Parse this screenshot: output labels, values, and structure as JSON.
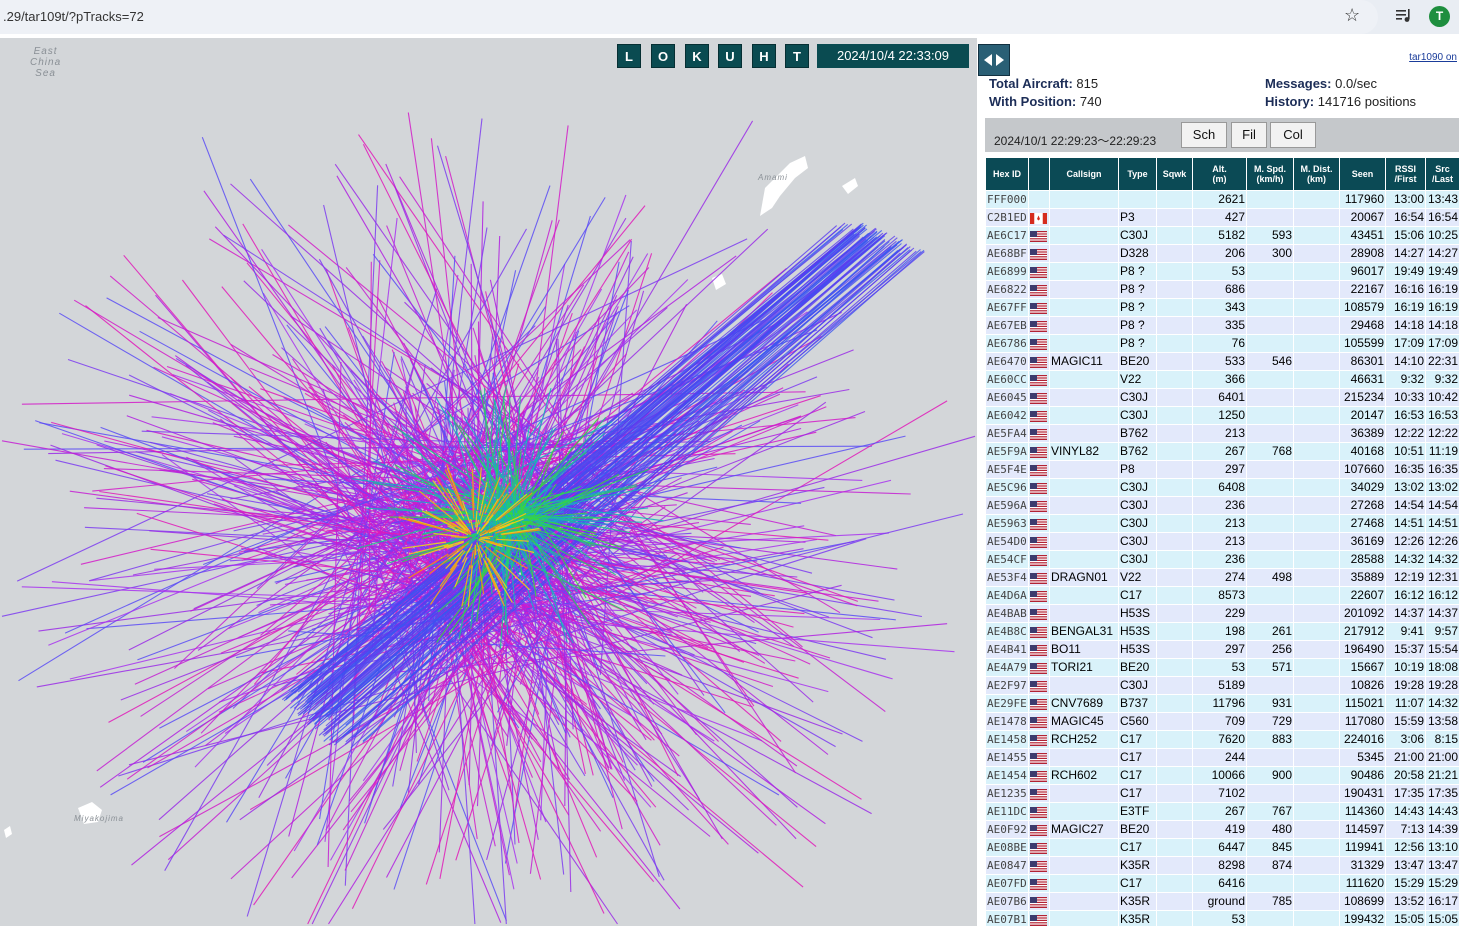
{
  "browser": {
    "url": ".29/tar109t/?pTracks=72",
    "avatar_letter": "T"
  },
  "map": {
    "labels": {
      "east_china_sea": "East\nChina\nSea",
      "amami": "Amami",
      "miyakojima": "Miyakojima"
    },
    "toolbar_buttons": [
      "L",
      "O",
      "K",
      "U",
      "H",
      "T"
    ],
    "clock": "2024/10/4 22:33:09"
  },
  "panel": {
    "link_label": "tar1090 on",
    "total_aircraft_label": "Total Aircraft:",
    "total_aircraft": "815",
    "with_position_label": "With Position:",
    "with_position": "740",
    "messages_label": "Messages:",
    "messages": "0.0/sec",
    "history_label": "History:",
    "history": "141716 positions",
    "time_range": "2024/10/1 22:29:23〜22:29:23",
    "buttons": {
      "search": "Sch",
      "filter": "Fil",
      "columns": "Col"
    },
    "columns": {
      "hex": "Hex ID",
      "callsign": "Callsign",
      "type": "Type",
      "squawk": "Sqwk",
      "alt_1": "Alt.",
      "alt_2": "(m)",
      "spd_1": "M. Spd.",
      "spd_2": "(km/h)",
      "dist_1": "M. Dist.",
      "dist_2": "(km)",
      "seen": "Seen",
      "rssi_1": "RSSI",
      "rssi_2": "/First",
      "src_1": "Src",
      "src_2": "/Last"
    },
    "rows": [
      {
        "hex": "FFF000",
        "flag": "",
        "callsign": "",
        "type": "",
        "sqwk": "",
        "alt": "2621",
        "spd": "",
        "dist": "",
        "seen": "117960",
        "first": "13:00",
        "last": "13:43"
      },
      {
        "hex": "C2B1ED",
        "flag": "ca",
        "callsign": "",
        "type": "P3",
        "sqwk": "",
        "alt": "427",
        "spd": "",
        "dist": "",
        "seen": "20067",
        "first": "16:54",
        "last": "16:54"
      },
      {
        "hex": "AE6C17",
        "flag": "us",
        "callsign": "",
        "type": "C30J",
        "sqwk": "",
        "alt": "5182",
        "spd": "593",
        "dist": "",
        "seen": "43451",
        "first": "15:06",
        "last": "10:25"
      },
      {
        "hex": "AE68BF",
        "flag": "us",
        "callsign": "",
        "type": "D328",
        "sqwk": "",
        "alt": "206",
        "spd": "300",
        "dist": "",
        "seen": "28908",
        "first": "14:27",
        "last": "14:27"
      },
      {
        "hex": "AE6899",
        "flag": "us",
        "callsign": "",
        "type": "P8 ?",
        "sqwk": "",
        "alt": "53",
        "spd": "",
        "dist": "",
        "seen": "96017",
        "first": "19:49",
        "last": "19:49"
      },
      {
        "hex": "AE6822",
        "flag": "us",
        "callsign": "",
        "type": "P8 ?",
        "sqwk": "",
        "alt": "686",
        "spd": "",
        "dist": "",
        "seen": "22167",
        "first": "16:16",
        "last": "16:19"
      },
      {
        "hex": "AE67FF",
        "flag": "us",
        "callsign": "",
        "type": "P8 ?",
        "sqwk": "",
        "alt": "343",
        "spd": "",
        "dist": "",
        "seen": "108579",
        "first": "16:19",
        "last": "16:19"
      },
      {
        "hex": "AE67EB",
        "flag": "us",
        "callsign": "",
        "type": "P8 ?",
        "sqwk": "",
        "alt": "335",
        "spd": "",
        "dist": "",
        "seen": "29468",
        "first": "14:18",
        "last": "14:18"
      },
      {
        "hex": "AE6786",
        "flag": "us",
        "callsign": "",
        "type": "P8 ?",
        "sqwk": "",
        "alt": "76",
        "spd": "",
        "dist": "",
        "seen": "105599",
        "first": "17:09",
        "last": "17:09"
      },
      {
        "hex": "AE6470",
        "flag": "us",
        "callsign": "MAGIC11",
        "type": "BE20",
        "sqwk": "",
        "alt": "533",
        "spd": "546",
        "dist": "",
        "seen": "86301",
        "first": "14:10",
        "last": "22:31"
      },
      {
        "hex": "AE60CC",
        "flag": "us",
        "callsign": "",
        "type": "V22",
        "sqwk": "",
        "alt": "366",
        "spd": "",
        "dist": "",
        "seen": "46631",
        "first": "9:32",
        "last": "9:32"
      },
      {
        "hex": "AE6045",
        "flag": "us",
        "callsign": "",
        "type": "C30J",
        "sqwk": "",
        "alt": "6401",
        "spd": "",
        "dist": "",
        "seen": "215234",
        "first": "10:33",
        "last": "10:42"
      },
      {
        "hex": "AE6042",
        "flag": "us",
        "callsign": "",
        "type": "C30J",
        "sqwk": "",
        "alt": "1250",
        "spd": "",
        "dist": "",
        "seen": "20147",
        "first": "16:53",
        "last": "16:53"
      },
      {
        "hex": "AE5FA4",
        "flag": "us",
        "callsign": "",
        "type": "B762",
        "sqwk": "",
        "alt": "213",
        "spd": "",
        "dist": "",
        "seen": "36389",
        "first": "12:22",
        "last": "12:22"
      },
      {
        "hex": "AE5F9A",
        "flag": "us",
        "callsign": "VINYL82",
        "type": "B762",
        "sqwk": "",
        "alt": "267",
        "spd": "768",
        "dist": "",
        "seen": "40168",
        "first": "10:51",
        "last": "11:19"
      },
      {
        "hex": "AE5F4E",
        "flag": "us",
        "callsign": "",
        "type": "P8",
        "sqwk": "",
        "alt": "297",
        "spd": "",
        "dist": "",
        "seen": "107660",
        "first": "16:35",
        "last": "16:35"
      },
      {
        "hex": "AE5C96",
        "flag": "us",
        "callsign": "",
        "type": "C30J",
        "sqwk": "",
        "alt": "6408",
        "spd": "",
        "dist": "",
        "seen": "34029",
        "first": "13:02",
        "last": "13:02"
      },
      {
        "hex": "AE596A",
        "flag": "us",
        "callsign": "",
        "type": "C30J",
        "sqwk": "",
        "alt": "236",
        "spd": "",
        "dist": "",
        "seen": "27268",
        "first": "14:54",
        "last": "14:54"
      },
      {
        "hex": "AE5963",
        "flag": "us",
        "callsign": "",
        "type": "C30J",
        "sqwk": "",
        "alt": "213",
        "spd": "",
        "dist": "",
        "seen": "27468",
        "first": "14:51",
        "last": "14:51"
      },
      {
        "hex": "AE54D0",
        "flag": "us",
        "callsign": "",
        "type": "C30J",
        "sqwk": "",
        "alt": "213",
        "spd": "",
        "dist": "",
        "seen": "36169",
        "first": "12:26",
        "last": "12:26"
      },
      {
        "hex": "AE54CF",
        "flag": "us",
        "callsign": "",
        "type": "C30J",
        "sqwk": "",
        "alt": "236",
        "spd": "",
        "dist": "",
        "seen": "28588",
        "first": "14:32",
        "last": "14:32"
      },
      {
        "hex": "AE53F4",
        "flag": "us",
        "callsign": "DRAGN01",
        "type": "V22",
        "sqwk": "",
        "alt": "274",
        "spd": "498",
        "dist": "",
        "seen": "35889",
        "first": "12:19",
        "last": "12:31"
      },
      {
        "hex": "AE4D6A",
        "flag": "us",
        "callsign": "",
        "type": "C17",
        "sqwk": "",
        "alt": "8573",
        "spd": "",
        "dist": "",
        "seen": "22607",
        "first": "16:12",
        "last": "16:12"
      },
      {
        "hex": "AE4BAB",
        "flag": "us",
        "callsign": "",
        "type": "H53S",
        "sqwk": "",
        "alt": "229",
        "spd": "",
        "dist": "",
        "seen": "201092",
        "first": "14:37",
        "last": "14:37"
      },
      {
        "hex": "AE4B8C",
        "flag": "us",
        "callsign": "BENGAL31",
        "type": "H53S",
        "sqwk": "",
        "alt": "198",
        "spd": "261",
        "dist": "",
        "seen": "217912",
        "first": "9:41",
        "last": "9:57"
      },
      {
        "hex": "AE4B41",
        "flag": "us",
        "callsign": "BO11",
        "type": "H53S",
        "sqwk": "",
        "alt": "297",
        "spd": "256",
        "dist": "",
        "seen": "196490",
        "first": "15:37",
        "last": "15:54"
      },
      {
        "hex": "AE4A79",
        "flag": "us",
        "callsign": "TORI21",
        "type": "BE20",
        "sqwk": "",
        "alt": "53",
        "spd": "571",
        "dist": "",
        "seen": "15667",
        "first": "10:19",
        "last": "18:08"
      },
      {
        "hex": "AE2F97",
        "flag": "us",
        "callsign": "",
        "type": "C30J",
        "sqwk": "",
        "alt": "5189",
        "spd": "",
        "dist": "",
        "seen": "10826",
        "first": "19:28",
        "last": "19:28"
      },
      {
        "hex": "AE29FE",
        "flag": "us",
        "callsign": "CNV7689",
        "type": "B737",
        "sqwk": "",
        "alt": "11796",
        "spd": "931",
        "dist": "",
        "seen": "115021",
        "first": "11:07",
        "last": "14:32"
      },
      {
        "hex": "AE1478",
        "flag": "us",
        "callsign": "MAGIC45",
        "type": "C560",
        "sqwk": "",
        "alt": "709",
        "spd": "729",
        "dist": "",
        "seen": "117080",
        "first": "15:59",
        "last": "13:58"
      },
      {
        "hex": "AE1458",
        "flag": "us",
        "callsign": "RCH252",
        "type": "C17",
        "sqwk": "",
        "alt": "7620",
        "spd": "883",
        "dist": "",
        "seen": "224016",
        "first": "3:06",
        "last": "8:15"
      },
      {
        "hex": "AE1455",
        "flag": "us",
        "callsign": "",
        "type": "C17",
        "sqwk": "",
        "alt": "244",
        "spd": "",
        "dist": "",
        "seen": "5345",
        "first": "21:00",
        "last": "21:00"
      },
      {
        "hex": "AE1454",
        "flag": "us",
        "callsign": "RCH602",
        "type": "C17",
        "sqwk": "",
        "alt": "10066",
        "spd": "900",
        "dist": "",
        "seen": "90486",
        "first": "20:58",
        "last": "21:21"
      },
      {
        "hex": "AE1235",
        "flag": "us",
        "callsign": "",
        "type": "C17",
        "sqwk": "",
        "alt": "7102",
        "spd": "",
        "dist": "",
        "seen": "190431",
        "first": "17:35",
        "last": "17:35"
      },
      {
        "hex": "AE11DC",
        "flag": "us",
        "callsign": "",
        "type": "E3TF",
        "sqwk": "",
        "alt": "267",
        "spd": "767",
        "dist": "",
        "seen": "114360",
        "first": "14:43",
        "last": "14:43"
      },
      {
        "hex": "AE0F92",
        "flag": "us",
        "callsign": "MAGIC27",
        "type": "BE20",
        "sqwk": "",
        "alt": "419",
        "spd": "480",
        "dist": "",
        "seen": "114597",
        "first": "7:13",
        "last": "14:39"
      },
      {
        "hex": "AE08BE",
        "flag": "us",
        "callsign": "",
        "type": "C17",
        "sqwk": "",
        "alt": "6447",
        "spd": "845",
        "dist": "",
        "seen": "119941",
        "first": "12:56",
        "last": "13:10"
      },
      {
        "hex": "AE0847",
        "flag": "us",
        "callsign": "",
        "type": "K35R",
        "sqwk": "",
        "alt": "8298",
        "spd": "874",
        "dist": "",
        "seen": "31329",
        "first": "13:47",
        "last": "13:47"
      },
      {
        "hex": "AE07FD",
        "flag": "us",
        "callsign": "",
        "type": "C17",
        "sqwk": "",
        "alt": "6416",
        "spd": "",
        "dist": "",
        "seen": "111620",
        "first": "15:29",
        "last": "15:29"
      },
      {
        "hex": "AE07B6",
        "flag": "us",
        "callsign": "",
        "type": "K35R",
        "sqwk": "",
        "alt": "ground",
        "spd": "785",
        "dist": "",
        "seen": "108699",
        "first": "13:52",
        "last": "16:17"
      },
      {
        "hex": "AE07B1",
        "flag": "us",
        "callsign": "",
        "type": "K35R",
        "sqwk": "",
        "alt": "53",
        "spd": "",
        "dist": "",
        "seen": "199432",
        "first": "15:05",
        "last": "15:05"
      }
    ]
  }
}
